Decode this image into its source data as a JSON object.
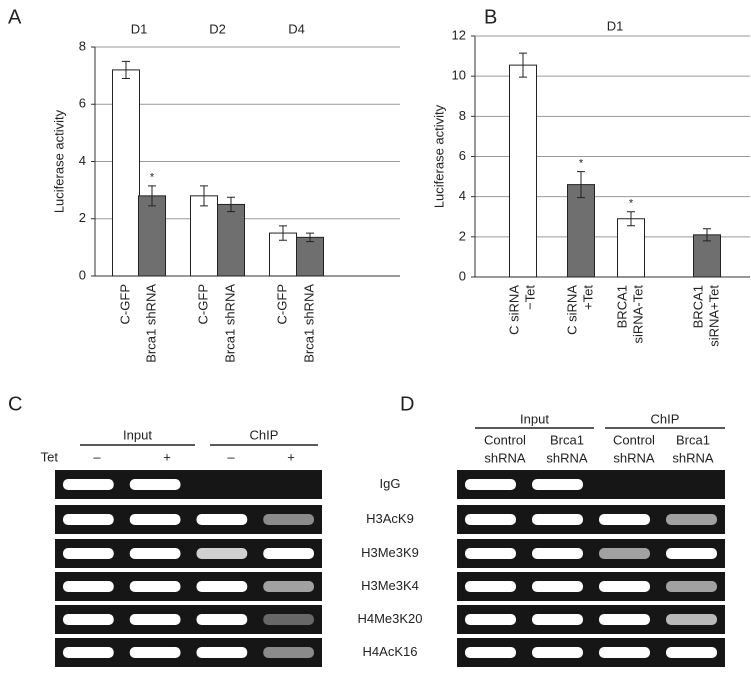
{
  "chart_data": [
    {
      "type": "bar",
      "panel": "A",
      "ylabel": "Luciferase activity",
      "groups": [
        "D1",
        "D2",
        "D4"
      ],
      "categories": [
        "C-GFP",
        "Brca1 shRNA",
        "C-GFP",
        "Brca1 shRNA",
        "C-GFP",
        "Brca1 shRNA"
      ],
      "values": [
        7.2,
        2.8,
        2.8,
        2.5,
        1.5,
        1.35
      ],
      "errors": [
        0.3,
        0.35,
        0.35,
        0.25,
        0.25,
        0.15
      ],
      "colors": [
        "#ffffff",
        "#6f6f6f",
        "#ffffff",
        "#6f6f6f",
        "#ffffff",
        "#6f6f6f"
      ],
      "significance": [
        null,
        "*",
        null,
        null,
        null,
        null
      ],
      "ylim": [
        0,
        8
      ],
      "yticks": [
        0,
        2,
        4,
        6,
        8
      ],
      "grid": true
    },
    {
      "type": "bar",
      "panel": "B",
      "ylabel": "Luciferase activity",
      "groups": [
        "D1"
      ],
      "categories": [
        [
          "C siRNA",
          "−Tet"
        ],
        [
          "C siRNA",
          "+Tet"
        ],
        [
          "BRCA1",
          "siRNA-Tet"
        ],
        [
          "BRCA1",
          "siRNA+Tet"
        ]
      ],
      "values": [
        10.55,
        4.6,
        2.9,
        2.1
      ],
      "errors": [
        0.6,
        0.65,
        0.35,
        0.3
      ],
      "colors": [
        "#ffffff",
        "#6f6f6f",
        "#ffffff",
        "#6f6f6f"
      ],
      "significance": [
        null,
        "*",
        "*",
        null
      ],
      "ylim": [
        0,
        12
      ],
      "yticks": [
        0,
        2,
        4,
        6,
        8,
        10,
        12
      ],
      "grid": true
    }
  ],
  "gel_rows": [
    "IgG",
    "H3AcK9",
    "H3Me3K9",
    "H3Me3K4",
    "H4Me3K20",
    "H4AcK16"
  ],
  "gels": [
    {
      "panel": "C",
      "headers": [
        "Input",
        "ChIP"
      ],
      "lane_title": "Tet",
      "lanes": [
        [
          "–"
        ],
        [
          "+"
        ],
        [
          "–"
        ],
        [
          "+"
        ]
      ]
    },
    {
      "panel": "D",
      "headers": [
        "Input",
        "ChIP"
      ],
      "lanes": [
        [
          "Control",
          "shRNA"
        ],
        [
          "Brca1",
          "shRNA"
        ],
        [
          "Control",
          "shRNA"
        ],
        [
          "Brca1",
          "shRNA"
        ]
      ]
    }
  ]
}
